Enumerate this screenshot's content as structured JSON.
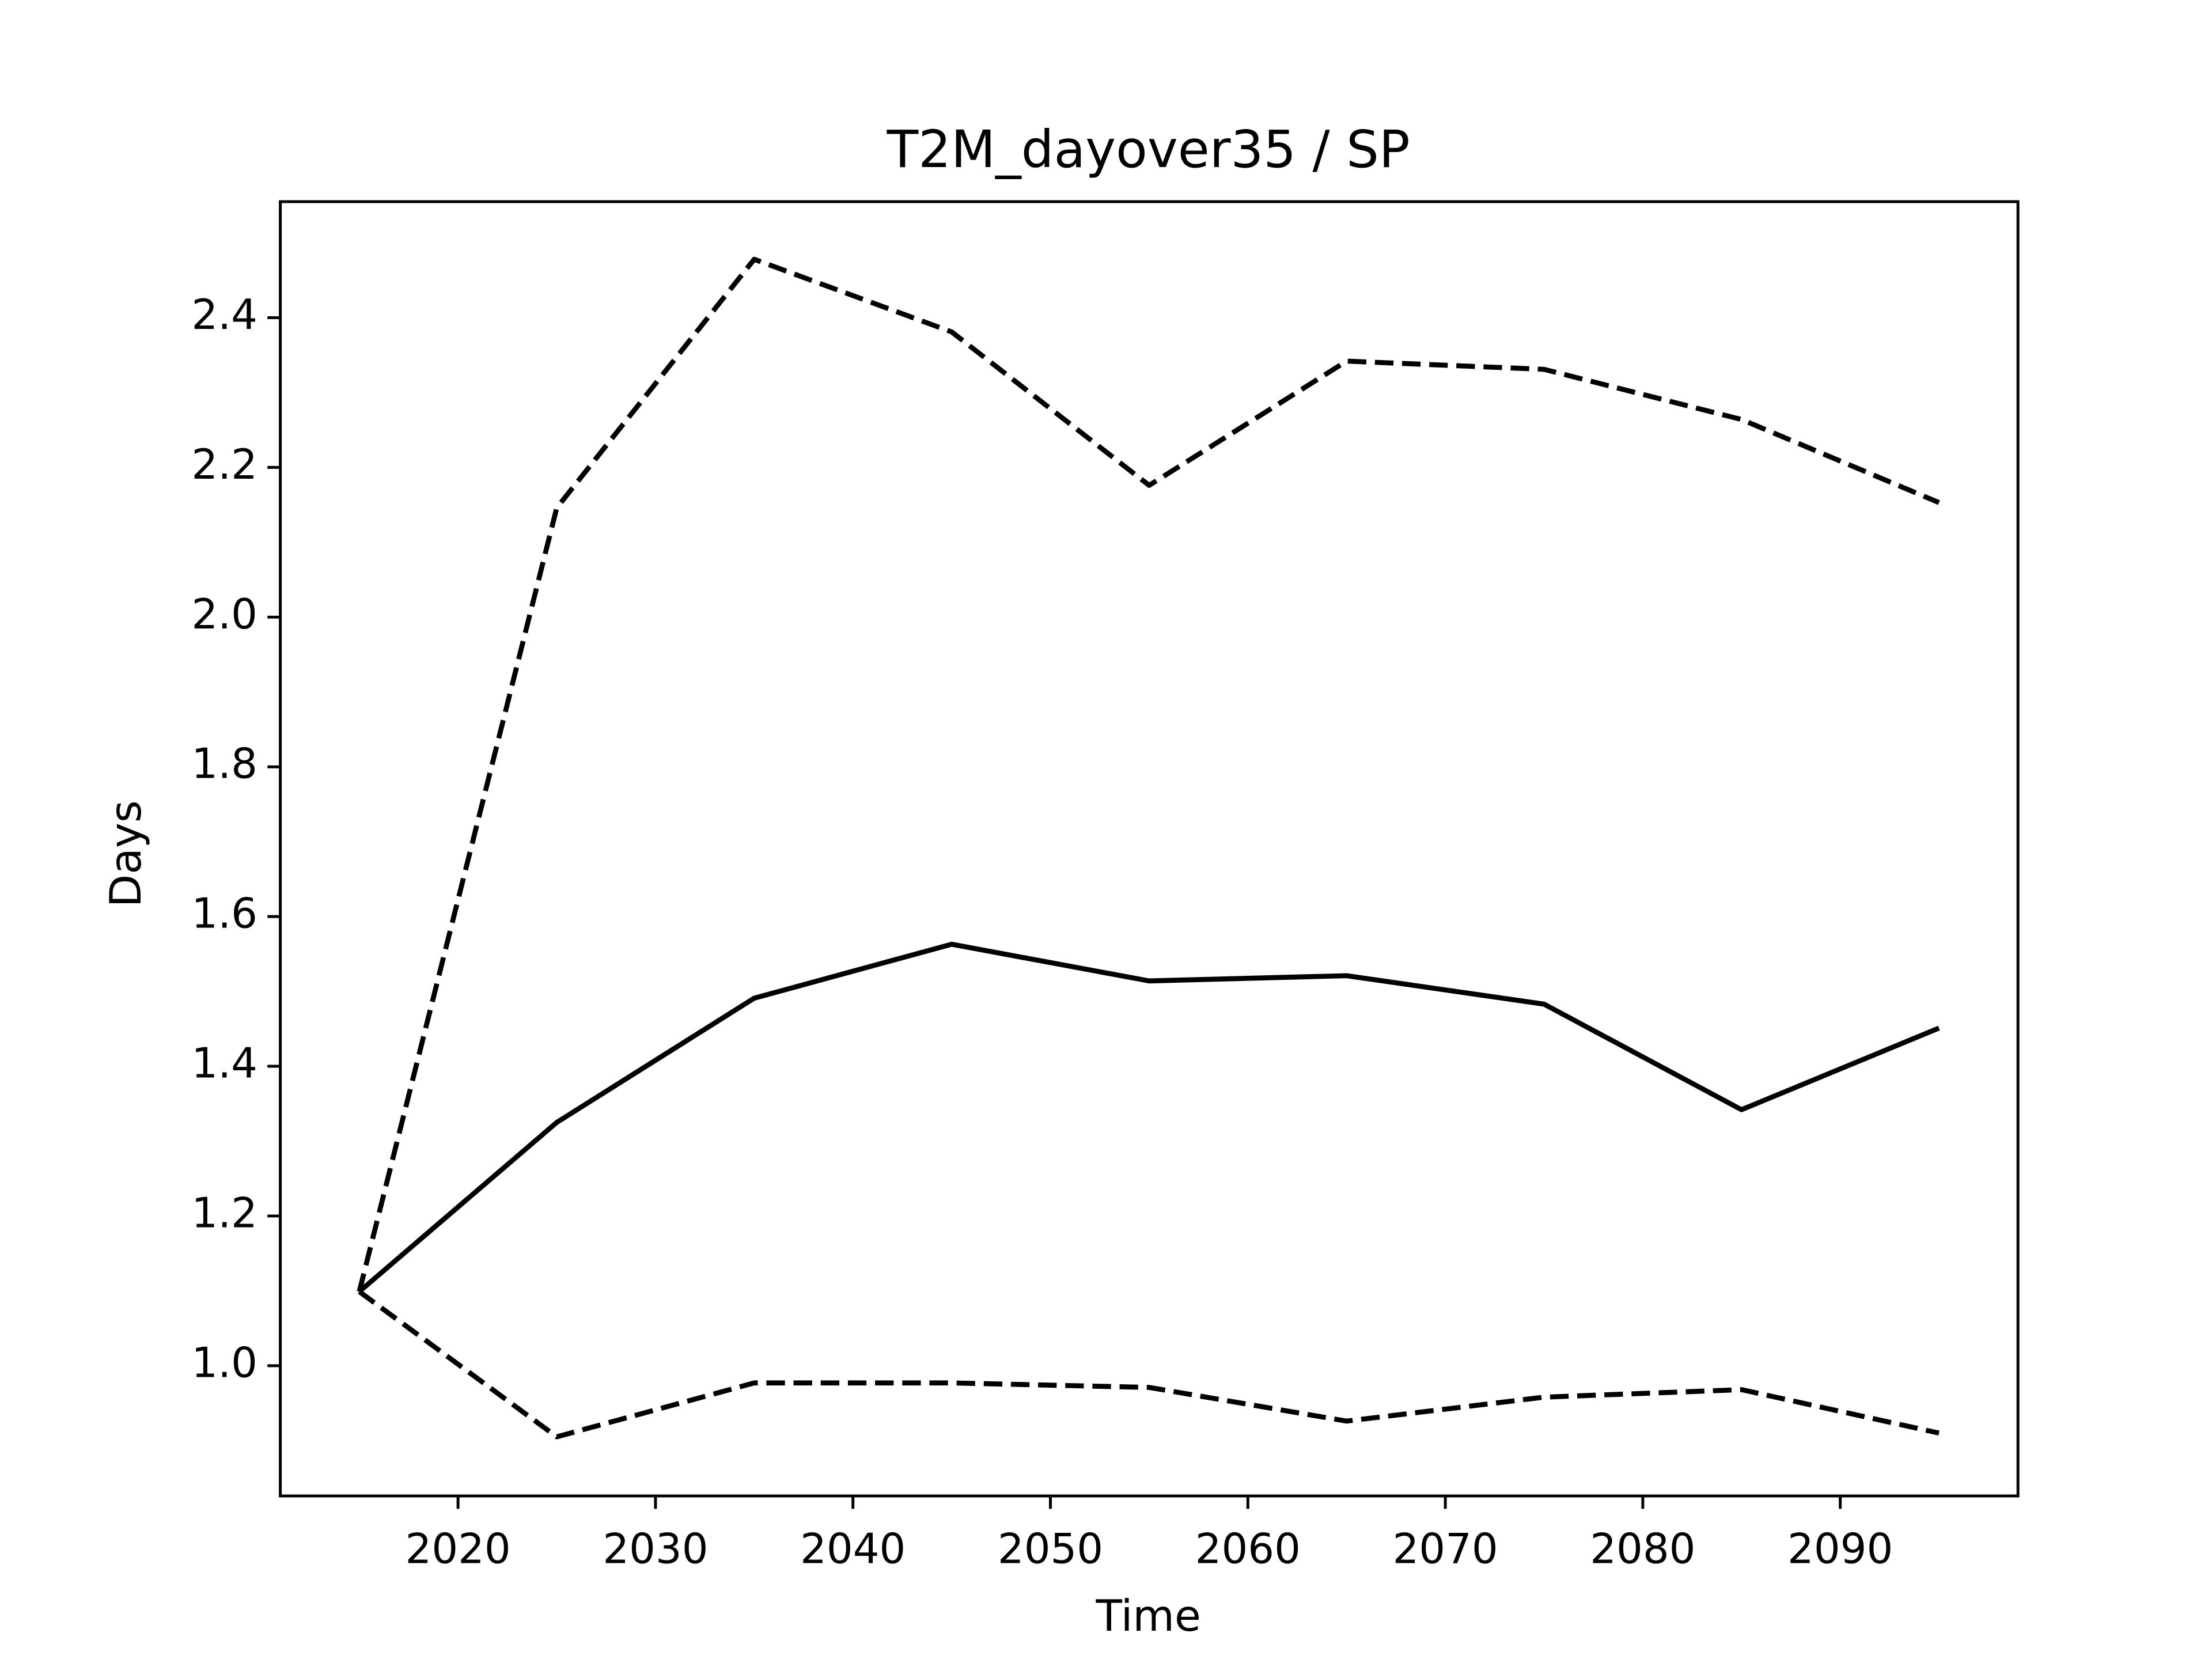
{
  "chart_data": {
    "type": "line",
    "title": "T2M_dayover35 / SP",
    "x_label": "Time",
    "y_label": "Days",
    "x": [
      2015,
      2025,
      2035,
      2045,
      2055,
      2065,
      2075,
      2085,
      2095
    ],
    "series": [
      {
        "color": "#000000",
        "linestyle": "solid",
        "values": [
          1.099,
          1.325,
          1.491,
          1.563,
          1.514,
          1.521,
          1.483,
          1.342,
          1.451
        ]
      },
      {
        "color": "#000000",
        "linestyle": "dashed",
        "values": [
          1.099,
          2.146,
          2.478,
          2.381,
          2.176,
          2.342,
          2.331,
          2.264,
          2.153
        ]
      },
      {
        "color": "#000000",
        "linestyle": "dashed",
        "values": [
          1.099,
          0.905,
          0.977,
          0.977,
          0.971,
          0.926,
          0.958,
          0.968,
          0.91
        ]
      }
    ],
    "xlim": [
      2011,
      2099
    ],
    "ylim": [
      0.826,
      2.555
    ],
    "xticks": [
      2020,
      2030,
      2040,
      2050,
      2060,
      2070,
      2080,
      2090
    ],
    "yticks": [
      {
        "value": 1,
        "label": "1.0"
      },
      1.2,
      1.4,
      1.6,
      1.8,
      {
        "value": 2,
        "label": "2.0"
      },
      2.2,
      2.4
    ],
    "grid": false
  }
}
